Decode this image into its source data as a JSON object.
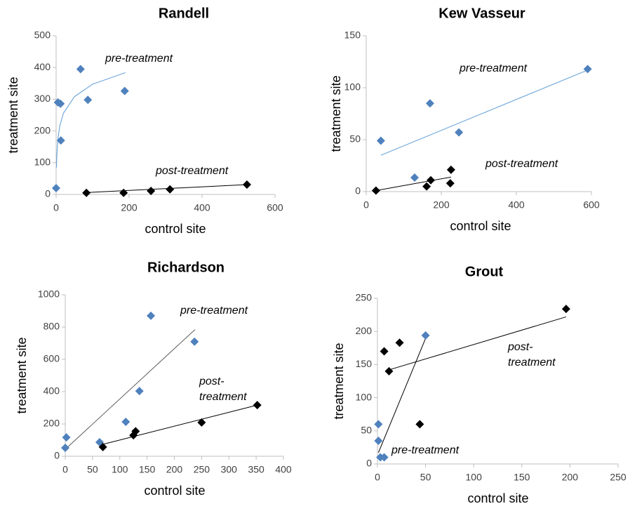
{
  "chart_data": [
    {
      "type": "scatter",
      "title": "Randell",
      "x_label": "control site",
      "y_label": "treatment site",
      "xlim": [
        0,
        600
      ],
      "ylim": [
        0,
        500
      ],
      "xticks": [
        0,
        200,
        400,
        600
      ],
      "yticks": [
        0,
        100,
        200,
        300,
        400,
        500
      ],
      "series": [
        {
          "name": "pre-treatment",
          "color": "#4f81bd",
          "x": [
            0,
            5,
            12,
            13,
            67,
            87,
            188
          ],
          "y": [
            20,
            290,
            286,
            170,
            395,
            298,
            326
          ],
          "trendline": {
            "color": "#5b9bd5",
            "x": [
              1,
              2,
              5,
              10,
              20,
              50,
              100,
              190
            ],
            "y": [
              85,
              124.5,
              176.7,
              216,
              256,
              308,
              347.5,
              384
            ]
          }
        },
        {
          "name": "post-treatment",
          "color": "#000000",
          "x": [
            83,
            185,
            260,
            312,
            523
          ],
          "y": [
            5,
            5,
            11,
            16,
            31
          ],
          "trendline": {
            "color": "#000000",
            "x": [
              83,
              523
            ],
            "y": [
              6,
              31
            ]
          }
        }
      ]
    },
    {
      "type": "scatter",
      "title": "Kew Vasseur",
      "x_label": "control site",
      "y_label": "treatment site",
      "xlim": [
        0,
        600
      ],
      "ylim": [
        0,
        150
      ],
      "xticks": [
        0,
        200,
        400,
        600
      ],
      "yticks": [
        0,
        50,
        100,
        150
      ],
      "series": [
        {
          "name": "pre-treatment",
          "color": "#4f81bd",
          "x": [
            39,
            129,
            170,
            247,
            590
          ],
          "y": [
            49,
            13.5,
            85,
            57,
            118
          ],
          "trendline": {
            "color": "#5b9bd5",
            "x": [
              39,
              590
            ],
            "y": [
              35,
              117
            ]
          }
        },
        {
          "name": "post-treatment",
          "color": "#000000",
          "x": [
            26,
            161,
            172,
            224,
            226
          ],
          "y": [
            1,
            5,
            11,
            8,
            21
          ],
          "trendline": {
            "color": "#000000",
            "x": [
              26,
              226
            ],
            "y": [
              1,
              14
            ]
          }
        }
      ]
    },
    {
      "type": "scatter",
      "title": "Richardson",
      "x_label": "control site",
      "y_label": "treatment site",
      "xlim": [
        0,
        400
      ],
      "ylim": [
        0,
        1000
      ],
      "xticks": [
        0,
        50,
        100,
        150,
        200,
        250,
        300,
        350,
        400
      ],
      "yticks": [
        0,
        200,
        400,
        600,
        800,
        1000
      ],
      "series": [
        {
          "name": "pre-treatment",
          "color": "#4f81bd",
          "x": [
            0,
            2,
            63,
            111,
            136,
            157,
            237
          ],
          "y": [
            52,
            117,
            87,
            213,
            404,
            870,
            710
          ],
          "trendline": {
            "color": "#595959",
            "x": [
              0,
              238
            ],
            "y": [
              43,
              785
            ]
          }
        },
        {
          "name": "post-treatment",
          "color": "#000000",
          "x": [
            69,
            125,
            129,
            250,
            352
          ],
          "y": [
            57,
            130,
            155,
            209,
            317
          ],
          "trendline": {
            "color": "#000000",
            "x": [
              69,
              352
            ],
            "y": [
              74,
              317
            ]
          }
        }
      ]
    },
    {
      "type": "scatter",
      "title": "Grout",
      "x_label": "control site",
      "y_label": "treatment site",
      "xlim": [
        0,
        250
      ],
      "ylim": [
        0,
        250
      ],
      "xticks": [
        0,
        50,
        100,
        150,
        200,
        250
      ],
      "yticks": [
        0,
        50,
        100,
        150,
        200,
        250
      ],
      "series": [
        {
          "name": "pre-treatment",
          "color": "#4f81bd",
          "x": [
            1,
            1,
            3,
            7,
            50
          ],
          "y": [
            60,
            35,
            10,
            10,
            194
          ],
          "trendline": {
            "color": "#000000",
            "x": [
              1,
              51
            ],
            "y": [
              17,
              193
            ]
          }
        },
        {
          "name": "post-treatment",
          "color": "#000000",
          "x": [
            7,
            12,
            23,
            44,
            196
          ],
          "y": [
            170,
            140,
            183,
            60,
            234
          ],
          "trendline": {
            "color": "#000000",
            "x": [
              12,
              196
            ],
            "y": [
              142,
              222
            ]
          }
        }
      ]
    }
  ]
}
